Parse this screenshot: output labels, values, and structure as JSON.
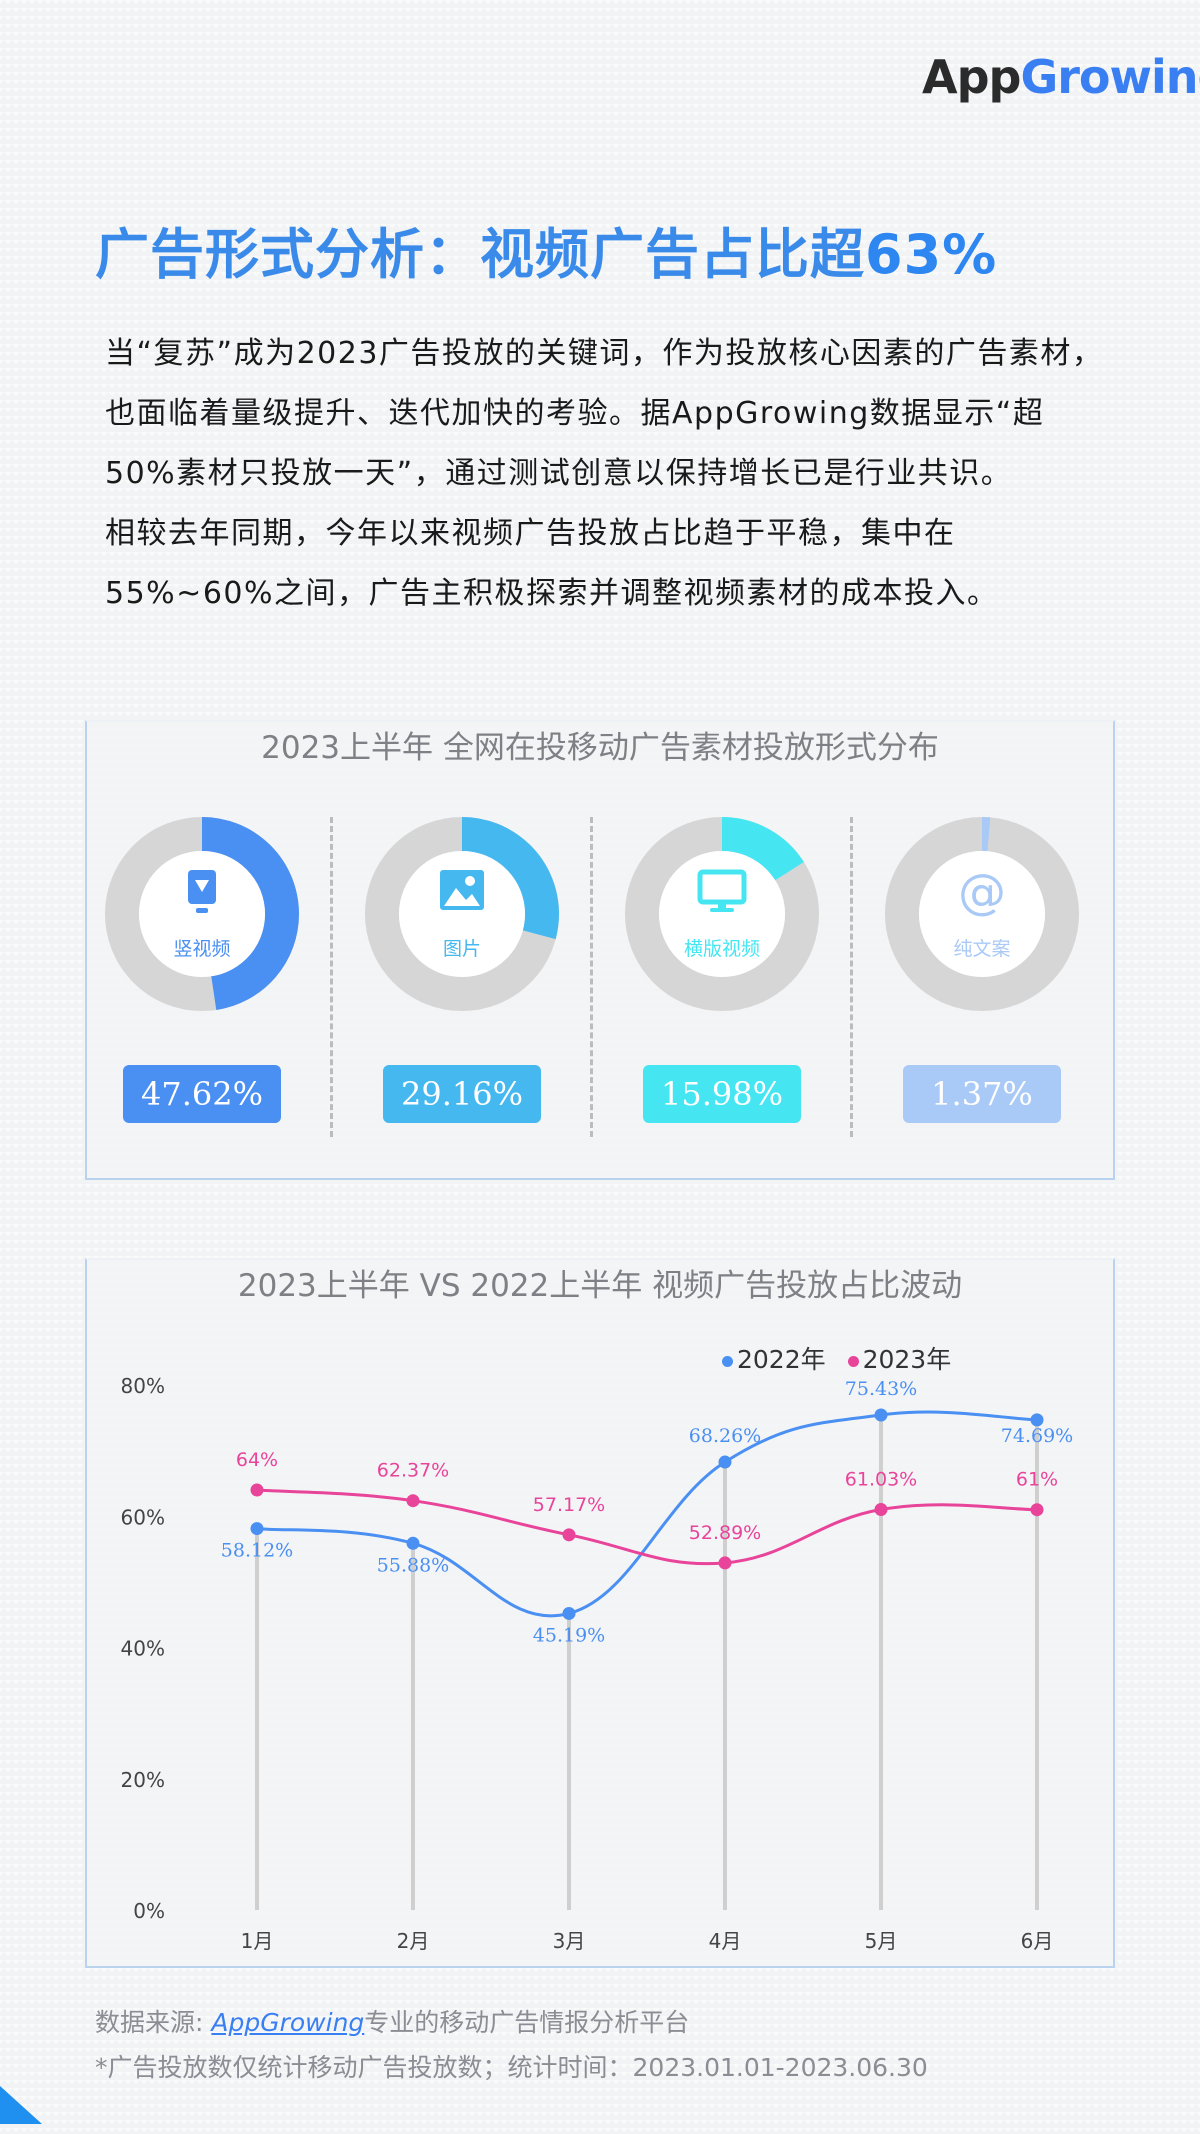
{
  "brand": {
    "logo_text_a": "App",
    "logo_text_b": "Growing",
    "accent": "#3a7ff2"
  },
  "title": {
    "main": "广告形式分析：视频广告占比超",
    "highlight": "63%"
  },
  "intro": [
    "当“复苏”成为2023广告投放的关键词，作为投放核心因素的广告素材，也面临着量级提升、迭代加快的考验。据AppGrowing数据显示“超50%素材只投放一天”，通过测试创意以保持增长已是行业共识。",
    "相较去年同期，今年以来视频广告投放占比趋于平稳，集中在55%~60%之间，广告主积极探索并调整视频素材的成本投入。"
  ],
  "chart_data": [
    {
      "type": "pie",
      "title": "2023上半年 全网在投移动广告素材投放形式分布",
      "slices": [
        {
          "label": "竖视频",
          "value": 47.62,
          "value_label": "47.62%",
          "color": "#4a8ff2",
          "icon": "vertical-video-icon"
        },
        {
          "label": "图片",
          "value": 29.16,
          "value_label": "29.16%",
          "color": "#45b8f0",
          "icon": "image-icon"
        },
        {
          "label": "横版视频",
          "value": 15.98,
          "value_label": "15.98%",
          "color": "#45e6f2",
          "icon": "monitor-icon"
        },
        {
          "label": "纯文案",
          "value": 1.37,
          "value_label": "1.37%",
          "color": "#a9c9f6",
          "icon": "at-sign-icon"
        }
      ],
      "remainder_color": "#d6d6d6"
    },
    {
      "type": "line",
      "title": "2023上半年 VS 2022上半年 视频广告投放占比波动",
      "categories": [
        "1月",
        "2月",
        "3月",
        "4月",
        "5月",
        "6月"
      ],
      "series": [
        {
          "name": "2022年",
          "color": "#4a8ff2",
          "values": [
            58.12,
            55.88,
            45.19,
            68.26,
            75.43,
            74.69
          ],
          "labels": [
            "58.12%",
            "55.88%",
            "45.19%",
            "68.26%",
            "75.43%",
            "74.69%"
          ]
        },
        {
          "name": "2023年",
          "color": "#e8449a",
          "values": [
            64,
            62.37,
            57.17,
            52.89,
            61.03,
            61
          ],
          "labels": [
            "64%",
            "62.37%",
            "57.17%",
            "52.89%",
            "61.03%",
            "61%"
          ]
        }
      ],
      "ylim": [
        0,
        80
      ],
      "yticks": [
        "0%",
        "20%",
        "40%",
        "60%",
        "80%"
      ],
      "ytick_values": [
        0,
        20,
        40,
        60,
        80
      ],
      "legend": "top-right"
    }
  ],
  "source": {
    "prefix": "数据来源:",
    "link": "AppGrowing",
    "suffix": "专业的移动广告情报分析平台"
  },
  "note": "*广告投放数仅统计移动广告投放数；统计时间：2023.01.01-2023.06.30"
}
